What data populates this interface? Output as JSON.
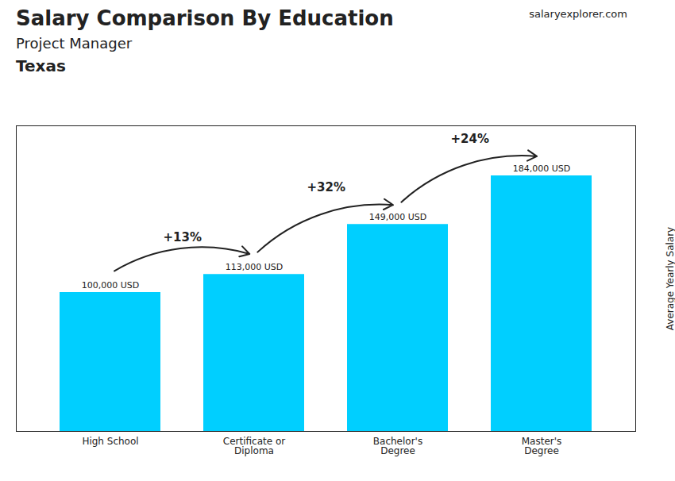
{
  "chart_data": {
    "type": "bar",
    "title": "Salary Comparison By Education",
    "subtitle": "Project Manager",
    "ylabel": "Average Yearly Salary",
    "categories": [
      "High School",
      "Certificate or\nDiploma",
      "Bachelor's\nDegree",
      "Master's\nDegree"
    ],
    "values": [
      100000,
      113000,
      149000,
      184000
    ],
    "value_labels": [
      "100,000 USD",
      "113,000 USD",
      "149,000 USD",
      "184,000 USD"
    ],
    "data_labels": true,
    "color": "#00CFFF",
    "ylim": [
      0,
      220000
    ],
    "tick_labels": "x",
    "grid": false,
    "annotations": [
      {
        "text": "Texas"
      },
      {
        "text": "salaryexplorer.com"
      },
      {
        "text": "+13%",
        "from": "High School",
        "to": "Certificate or\nDiploma"
      },
      {
        "text": "+32%",
        "from": "Certificate or\nDiploma",
        "to": "Bachelor's\nDegree"
      },
      {
        "text": "+24%",
        "from": "Bachelor's\nDegree",
        "to": "Master's\nDegree"
      }
    ]
  }
}
